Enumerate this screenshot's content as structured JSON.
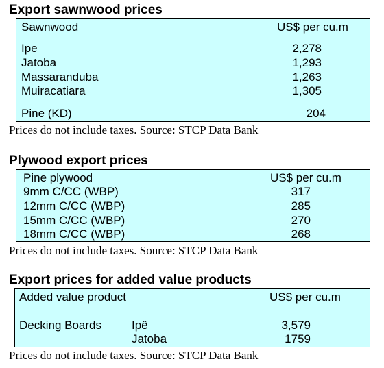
{
  "sawnwood": {
    "heading": "Export sawnwood prices",
    "col_product": "Sawnwood",
    "col_price": "US$ per cu.m",
    "rows": [
      {
        "name": "Ipe",
        "price": "2,278"
      },
      {
        "name": "Jatoba",
        "price": "1,293"
      },
      {
        "name": "Massaranduba",
        "price": "1,263"
      },
      {
        "name": "Muiracatiara",
        "price": "1,305"
      }
    ],
    "pine": {
      "name": "Pine (KD)",
      "price": "204"
    },
    "note": "Prices do not include taxes. Source: STCP Data Bank"
  },
  "plywood": {
    "heading": "Plywood export prices",
    "col_product": "Pine plywood",
    "col_price": "US$ per cu.m",
    "rows": [
      {
        "name": "9mm C/CC (WBP)",
        "price": "317"
      },
      {
        "name": "12mm C/CC (WBP)",
        "price": "285"
      },
      {
        "name": "15mm C/CC (WBP)",
        "price": "270"
      },
      {
        "name": "18mm C/CC (WBP)",
        "price": "268"
      }
    ],
    "note": "Prices do not include taxes. Source: STCP Data Bank"
  },
  "added_value": {
    "heading": "Export prices for added value products",
    "col_product": "Added value product",
    "col_price": "US$ per cu.m",
    "product": "Decking Boards",
    "rows": [
      {
        "species": "Ipê",
        "price": "3,579"
      },
      {
        "species": "Jatoba",
        "price": "1759"
      }
    ],
    "note": "Prices do not include taxes. Source: STCP Data Bank"
  },
  "colors": {
    "box_fill": "#ccffff",
    "border": "#000000"
  }
}
